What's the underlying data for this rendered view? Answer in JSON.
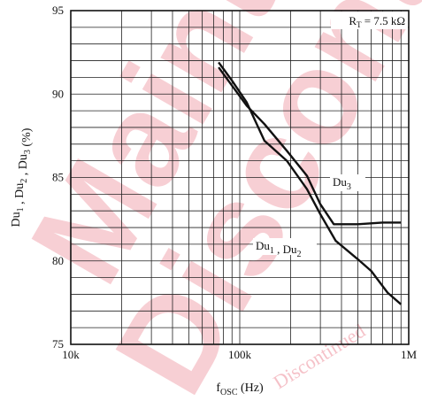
{
  "watermark": {
    "words": [
      "Maintenance",
      "Discontinued"
    ],
    "small": "Discontinued",
    "color": "#f2a8b2"
  },
  "chart_data": {
    "type": "line",
    "xscale": "log",
    "xlim": [
      10000,
      1000000
    ],
    "ylim": [
      75,
      95
    ],
    "x_ticks": [
      {
        "value": 10000,
        "label": "10k"
      },
      {
        "value": 100000,
        "label": "100k"
      },
      {
        "value": 1000000,
        "label": "1M"
      }
    ],
    "y_ticks": [
      {
        "value": 75,
        "label": "75"
      },
      {
        "value": 80,
        "label": "80"
      },
      {
        "value": 85,
        "label": "85"
      },
      {
        "value": 90,
        "label": "90"
      },
      {
        "value": 95,
        "label": "95"
      }
    ],
    "xlabel": {
      "main": "f",
      "sub": "OSC",
      "tail": "  (Hz)"
    },
    "ylabel": {
      "parts": [
        [
          "Du",
          "1"
        ],
        [
          " , Du",
          "2"
        ],
        [
          " , Du",
          "3"
        ]
      ],
      "tail": "  (%)"
    },
    "condition": {
      "main": "R",
      "sub": "T",
      "tail": " = 7.5 kΩ"
    },
    "grid": true,
    "series": [
      {
        "name": "Du3",
        "label_parts": [
          [
            "Du",
            "3"
          ]
        ],
        "x": [
          75000,
          90000,
          110000,
          140000,
          190000,
          250000,
          300000,
          360000,
          500000,
          700000,
          900000
        ],
        "y": [
          91.6,
          90.5,
          89.3,
          88.2,
          86.6,
          85.1,
          83.4,
          82.2,
          82.2,
          82.3,
          82.3
        ]
      },
      {
        "name": "Du1 , Du2",
        "label_parts": [
          [
            "Du",
            "1"
          ],
          [
            " , Du",
            "2"
          ]
        ],
        "x": [
          75000,
          90000,
          110000,
          140000,
          190000,
          250000,
          300000,
          370000,
          500000,
          600000,
          750000,
          900000
        ],
        "y": [
          91.9,
          90.8,
          89.5,
          87.2,
          86.0,
          84.3,
          82.8,
          81.2,
          80.1,
          79.4,
          78.1,
          77.4
        ]
      }
    ]
  }
}
